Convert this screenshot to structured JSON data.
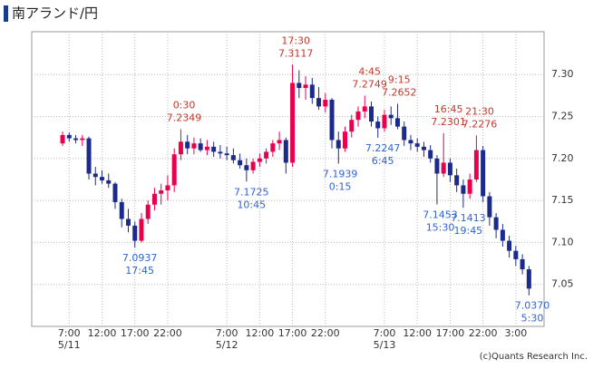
{
  "chart_data": {
    "type": "candlestick",
    "title": "南アランド/円",
    "copyright": "(c)Quants Research Inc.",
    "x": [
      6,
      7,
      8,
      9,
      10,
      11,
      12,
      13,
      14,
      15,
      16,
      17,
      18,
      19,
      20,
      21,
      22,
      23,
      24,
      25,
      26,
      27,
      28,
      29,
      30,
      31,
      32,
      33,
      34,
      35,
      36,
      37,
      38,
      39,
      40,
      41,
      42,
      43,
      44,
      45,
      46,
      47,
      48,
      49,
      50,
      51,
      52,
      53,
      54,
      55,
      56,
      57,
      58,
      59,
      60,
      61,
      62,
      63,
      64,
      65,
      66,
      67,
      68,
      69,
      70,
      71,
      72,
      73,
      74,
      75,
      76,
      77
    ],
    "open": [
      7.218,
      7.228,
      7.224,
      7.222,
      7.224,
      7.182,
      7.178,
      7.174,
      7.17,
      7.148,
      7.128,
      7.12,
      7.102,
      7.128,
      7.145,
      7.158,
      7.162,
      7.168,
      7.205,
      7.22,
      7.212,
      7.218,
      7.21,
      7.214,
      7.208,
      7.206,
      7.204,
      7.198,
      7.192,
      7.186,
      7.196,
      7.2,
      7.208,
      7.218,
      7.222,
      7.195,
      7.29,
      7.284,
      7.288,
      7.272,
      7.262,
      7.27,
      7.222,
      7.212,
      7.232,
      7.246,
      7.256,
      7.262,
      7.244,
      7.236,
      7.252,
      7.248,
      7.238,
      7.222,
      7.218,
      7.214,
      7.21,
      7.2,
      7.182,
      7.195,
      7.18,
      7.168,
      7.158,
      7.175,
      7.21,
      7.155,
      7.13,
      7.115,
      7.102,
      7.09,
      7.08,
      7.068
    ],
    "high": [
      7.232,
      7.231,
      7.228,
      7.228,
      7.226,
      7.19,
      7.186,
      7.182,
      7.172,
      7.152,
      7.14,
      7.125,
      7.135,
      7.15,
      7.165,
      7.17,
      7.18,
      7.212,
      7.2349,
      7.228,
      7.225,
      7.224,
      7.222,
      7.22,
      7.216,
      7.214,
      7.212,
      7.206,
      7.2,
      7.2,
      7.206,
      7.212,
      7.222,
      7.232,
      7.225,
      7.3117,
      7.305,
      7.298,
      7.296,
      7.285,
      7.278,
      7.272,
      7.232,
      7.238,
      7.252,
      7.262,
      7.2749,
      7.268,
      7.25,
      7.258,
      7.262,
      7.2652,
      7.244,
      7.228,
      7.224,
      7.22,
      7.216,
      7.204,
      7.2301,
      7.2,
      7.188,
      7.175,
      7.182,
      7.2276,
      7.215,
      7.16,
      7.135,
      7.122,
      7.108,
      7.096,
      7.086,
      7.072
    ],
    "low": [
      7.215,
      7.22,
      7.218,
      7.215,
      7.175,
      7.168,
      7.17,
      7.165,
      7.14,
      7.118,
      7.112,
      7.0937,
      7.1,
      7.122,
      7.138,
      7.145,
      7.15,
      7.16,
      7.198,
      7.205,
      7.205,
      7.208,
      7.204,
      7.202,
      7.2,
      7.198,
      7.194,
      7.188,
      7.1725,
      7.182,
      7.19,
      7.194,
      7.202,
      7.21,
      7.182,
      7.19,
      7.272,
      7.27,
      7.265,
      7.258,
      7.255,
      7.212,
      7.1939,
      7.208,
      7.225,
      7.238,
      7.248,
      7.238,
      7.2247,
      7.232,
      7.24,
      7.235,
      7.215,
      7.21,
      7.208,
      7.202,
      7.195,
      7.1453,
      7.178,
      7.172,
      7.16,
      7.1413,
      7.152,
      7.172,
      7.148,
      7.12,
      7.105,
      7.095,
      7.082,
      7.072,
      7.062,
      7.037
    ],
    "close": [
      7.228,
      7.224,
      7.222,
      7.224,
      7.182,
      7.178,
      7.174,
      7.17,
      7.148,
      7.128,
      7.12,
      7.102,
      7.128,
      7.145,
      7.158,
      7.162,
      7.168,
      7.205,
      7.22,
      7.212,
      7.218,
      7.21,
      7.214,
      7.208,
      7.206,
      7.204,
      7.198,
      7.192,
      7.186,
      7.196,
      7.2,
      7.208,
      7.218,
      7.222,
      7.195,
      7.29,
      7.284,
      7.288,
      7.272,
      7.262,
      7.27,
      7.222,
      7.212,
      7.232,
      7.246,
      7.256,
      7.262,
      7.244,
      7.236,
      7.252,
      7.248,
      7.238,
      7.222,
      7.218,
      7.214,
      7.21,
      7.2,
      7.182,
      7.195,
      7.18,
      7.168,
      7.158,
      7.175,
      7.21,
      7.155,
      7.13,
      7.115,
      7.102,
      7.09,
      7.08,
      7.068,
      7.045
    ],
    "up_color": "#e8004c",
    "down_color": "#1c2a8c",
    "xlim": [
      1.3,
      79.3
    ],
    "ylim": [
      7.0,
      7.351
    ],
    "xticks": [
      {
        "value": 7,
        "label": "7:00"
      },
      {
        "value": 12,
        "label": "12:00"
      },
      {
        "value": 17,
        "label": "17:00"
      },
      {
        "value": 22,
        "label": "22:00"
      },
      {
        "value": 31,
        "label": "7:00"
      },
      {
        "value": 36,
        "label": "12:00"
      },
      {
        "value": 41,
        "label": "17:00"
      },
      {
        "value": 46,
        "label": "22:00"
      },
      {
        "value": 55,
        "label": "7:00"
      },
      {
        "value": 60,
        "label": "12:00"
      },
      {
        "value": 65,
        "label": "17:00"
      },
      {
        "value": 70,
        "label": "22:00"
      },
      {
        "value": 75,
        "label": "3:00"
      }
    ],
    "date_labels": [
      {
        "value": 7,
        "label": "5/11"
      },
      {
        "value": 31,
        "label": "5/12"
      },
      {
        "value": 55,
        "label": "5/13"
      }
    ],
    "yticks": [
      7.05,
      {
        "value": 7.1,
        "label": "7.10"
      },
      7.15,
      {
        "value": 7.2,
        "label": "7.20"
      },
      7.25,
      {
        "value": 7.3,
        "label": "7.30"
      }
    ],
    "grid": true,
    "annotations": [
      {
        "kind": "high",
        "x": 24.5,
        "time": "0:30",
        "price": {
          "value": 7.2349,
          "label": "7.2349"
        }
      },
      {
        "kind": "low",
        "x": 17.75,
        "time": "17:45",
        "price": {
          "value": 7.0937,
          "label": "7.0937"
        }
      },
      {
        "kind": "low",
        "x": 34.75,
        "time": "10:45",
        "price": {
          "value": 7.1725,
          "label": "7.1725"
        }
      },
      {
        "kind": "high",
        "x": 41.5,
        "time": "17:30",
        "price": {
          "value": 7.3117,
          "label": "7.3117"
        }
      },
      {
        "kind": "low",
        "x": 48.25,
        "time": "0:15",
        "price": {
          "value": 7.1939,
          "label": "7.1939"
        }
      },
      {
        "kind": "high",
        "x": 52.75,
        "time": "4:45",
        "price": {
          "value": 7.2749,
          "label": "7.2749"
        }
      },
      {
        "kind": "high",
        "x": 57.25,
        "time": "9:15",
        "price": {
          "value": 7.2652,
          "label": "7.2652"
        }
      },
      {
        "kind": "low",
        "x": 54.75,
        "time": "6:45",
        "price": {
          "value": 7.2247,
          "label": "7.2247"
        }
      },
      {
        "kind": "high",
        "x": 64.75,
        "time": "16:45",
        "price": {
          "value": 7.2301,
          "label": "7.2301"
        }
      },
      {
        "kind": "low",
        "x": 63.5,
        "time": "15:30",
        "price": {
          "value": 7.1453,
          "label": "7.1453"
        }
      },
      {
        "kind": "high",
        "x": 69.5,
        "time": "21:30",
        "price": {
          "value": 7.2276,
          "label": "7.2276"
        }
      },
      {
        "kind": "low",
        "x": 67.75,
        "time": "19:45",
        "price": {
          "value": 7.1413,
          "label": "7.1413"
        }
      },
      {
        "kind": "low",
        "x": 77.5,
        "time": "5:30",
        "price": {
          "value": 7.037,
          "label": "7.0370"
        }
      }
    ],
    "high_color": "#c0392b",
    "low_color": "#2f64d6"
  }
}
